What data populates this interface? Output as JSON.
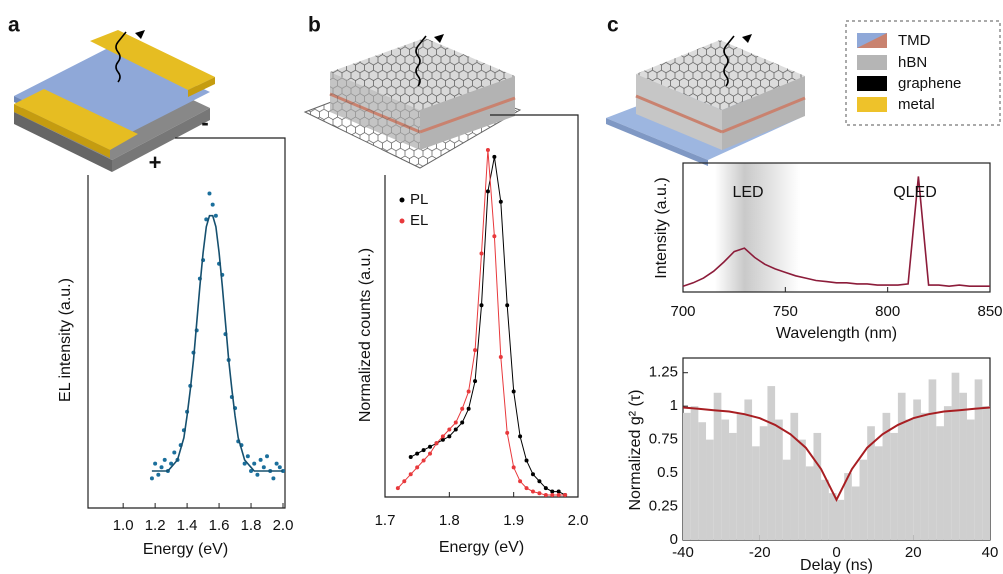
{
  "panel_labels": [
    "a",
    "b",
    "c"
  ],
  "device_legend": [
    "TMD",
    "hBN",
    "graphene",
    "metal"
  ],
  "terminals": [
    "+",
    "-"
  ],
  "chart_data": [
    {
      "type": "scatter",
      "x_label": "Energy (eV)",
      "y_label": "EL intensity (a.u.)",
      "xlim": [
        0.78,
        2.0
      ],
      "ylim": [
        0,
        1
      ],
      "xticks": [
        {
          "value": 1,
          "label": "1.0"
        },
        1.2,
        1.4,
        1.6,
        1.8,
        {
          "value": 2,
          "label": "2.0"
        }
      ],
      "x": [
        1.18,
        1.2,
        1.22,
        1.24,
        1.26,
        1.28,
        1.3,
        1.32,
        1.34,
        1.36,
        1.38,
        1.4,
        1.42,
        1.44,
        1.46,
        1.48,
        1.5,
        1.52,
        1.54,
        1.56,
        1.58,
        1.6,
        1.62,
        1.64,
        1.66,
        1.68,
        1.7,
        1.72,
        1.74,
        1.76,
        1.78,
        1.8,
        1.82,
        1.84,
        1.86,
        1.88,
        1.9,
        1.92,
        1.94,
        1.96,
        1.98,
        2.0
      ],
      "series": [
        {
          "color": "#1b6f9c",
          "mode": "markers",
          "values": [
            0.08,
            0.12,
            0.09,
            0.11,
            0.13,
            0.1,
            0.12,
            0.15,
            0.13,
            0.17,
            0.21,
            0.26,
            0.33,
            0.42,
            0.48,
            0.62,
            0.67,
            0.78,
            0.85,
            0.82,
            0.79,
            0.66,
            0.63,
            0.47,
            0.4,
            0.3,
            0.27,
            0.18,
            0.17,
            0.12,
            0.14,
            0.1,
            0.12,
            0.09,
            0.13,
            0.11,
            0.14,
            0.1,
            0.08,
            0.12,
            0.11,
            0.1
          ]
        },
        {
          "color": "#16506f",
          "mode": "line",
          "values": [
            0.1,
            0.1,
            0.1,
            0.1,
            0.1,
            0.1,
            0.11,
            0.12,
            0.13,
            0.16,
            0.19,
            0.25,
            0.32,
            0.4,
            0.5,
            0.6,
            0.69,
            0.76,
            0.79,
            0.79,
            0.76,
            0.69,
            0.6,
            0.5,
            0.4,
            0.32,
            0.25,
            0.19,
            0.16,
            0.13,
            0.12,
            0.11,
            0.1,
            0.1,
            0.1,
            0.1,
            0.1,
            0.1,
            0.1,
            0.1,
            0.1,
            0.1
          ]
        }
      ]
    },
    {
      "type": "scatter",
      "x_label": "Energy (eV)",
      "y_label": "Normalized counts (a.u.)",
      "xlim": [
        1.7,
        2.0
      ],
      "ylim": [
        0,
        1
      ],
      "xticks": [
        1.7,
        1.8,
        1.9,
        {
          "value": 2,
          "label": "2.0"
        }
      ],
      "x": [
        1.72,
        1.73,
        1.74,
        1.75,
        1.76,
        1.77,
        1.78,
        1.79,
        1.8,
        1.81,
        1.82,
        1.83,
        1.84,
        1.85,
        1.86,
        1.87,
        1.88,
        1.89,
        1.9,
        1.91,
        1.92,
        1.93,
        1.94,
        1.95,
        1.96,
        1.97,
        1.98
      ],
      "series": [
        {
          "name": "PL",
          "color": "#000000",
          "mode": "line+markers",
          "values": [
            null,
            null,
            0.11,
            0.12,
            0.13,
            0.14,
            0.15,
            0.16,
            0.17,
            0.19,
            0.21,
            0.25,
            0.33,
            0.55,
            0.88,
            0.98,
            0.85,
            0.55,
            0.3,
            0.17,
            0.1,
            0.06,
            0.04,
            0.02,
            0.01,
            0.01,
            0
          ]
        },
        {
          "name": "EL",
          "color": "#e8393c",
          "mode": "line+markers",
          "values": [
            0.02,
            0.04,
            0.06,
            0.08,
            0.1,
            0.12,
            0.15,
            0.17,
            0.19,
            0.21,
            0.25,
            0.3,
            0.42,
            0.7,
            1.0,
            0.75,
            0.4,
            0.18,
            0.08,
            0.04,
            0.02,
            0.01,
            0.005,
            0,
            0,
            0,
            0
          ]
        }
      ]
    },
    {
      "type": "line",
      "x_label": "Wavelength (nm)",
      "y_label": "Intensity (a.u.)",
      "xlim": [
        700,
        850
      ],
      "ylim": [
        0,
        1.1
      ],
      "xticks": [
        700,
        750,
        800,
        850
      ],
      "annotations": [
        "LED",
        "QLED"
      ],
      "x": [
        700,
        705,
        710,
        715,
        720,
        725,
        730,
        735,
        740,
        745,
        750,
        755,
        760,
        765,
        770,
        775,
        780,
        785,
        790,
        795,
        800,
        805,
        810,
        815,
        820,
        825,
        830,
        835,
        840,
        845,
        850
      ],
      "series": [
        {
          "color": "#8c1c3a",
          "mode": "line",
          "values": [
            0.05,
            0.08,
            0.12,
            0.18,
            0.26,
            0.35,
            0.38,
            0.3,
            0.24,
            0.2,
            0.17,
            0.14,
            0.12,
            0.1,
            0.09,
            0.08,
            0.08,
            0.07,
            0.07,
            0.06,
            0.06,
            0.06,
            0.07,
            1.0,
            0.06,
            0.06,
            0.05,
            0.06,
            0.05,
            0.05,
            0.05
          ]
        }
      ]
    },
    {
      "type": "histogram",
      "x_label": "Delay (ns)",
      "y_label": "Normalized g² (τ)",
      "xlim": [
        -40,
        40
      ],
      "ylim": [
        0,
        1.33
      ],
      "xticks": [
        -40,
        -20,
        0,
        20,
        40
      ],
      "yticks": [
        0,
        0.25,
        0.5,
        0.75,
        1,
        1.25
      ],
      "color": "#cfcfcf",
      "bins": [
        -40,
        -38,
        -36,
        -34,
        -32,
        -30,
        -28,
        -26,
        -24,
        -22,
        -20,
        -18,
        -16,
        -14,
        -12,
        -10,
        -8,
        -6,
        -4,
        -2,
        0,
        2,
        4,
        6,
        8,
        10,
        12,
        14,
        16,
        18,
        20,
        22,
        24,
        26,
        28,
        30,
        32,
        34,
        36,
        38,
        40
      ],
      "values": [
        0.95,
        1.0,
        0.88,
        0.75,
        1.1,
        0.9,
        0.8,
        0.95,
        1.05,
        0.7,
        0.85,
        1.15,
        0.9,
        0.6,
        0.95,
        0.75,
        0.55,
        0.8,
        0.45,
        0.35,
        0.3,
        0.5,
        0.4,
        0.6,
        0.85,
        0.7,
        0.95,
        0.8,
        1.1,
        0.9,
        1.05,
        0.95,
        1.2,
        0.85,
        1.0,
        1.25,
        1.1,
        0.9,
        1.2,
        1.0
      ],
      "fit": {
        "color": "#a81e22",
        "x": [
          -40,
          -36,
          -32,
          -28,
          -24,
          -20,
          -16,
          -12,
          -8,
          -4,
          0,
          4,
          8,
          12,
          16,
          20,
          24,
          28,
          32,
          36,
          40
        ],
        "values": [
          0.99,
          0.98,
          0.97,
          0.96,
          0.94,
          0.91,
          0.86,
          0.79,
          0.69,
          0.53,
          0.3,
          0.53,
          0.69,
          0.79,
          0.86,
          0.91,
          0.94,
          0.96,
          0.97,
          0.98,
          0.99
        ]
      }
    }
  ]
}
